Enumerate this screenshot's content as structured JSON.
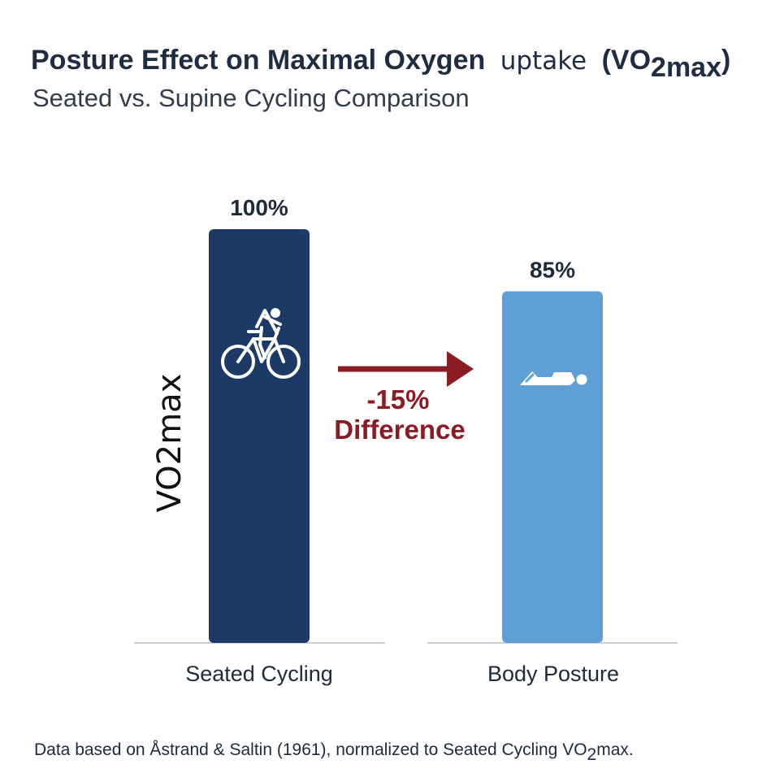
{
  "title": {
    "part1": "Posture Effect on Maximal Oxygen",
    "part2": "uptake",
    "part3_prefix": "(VO",
    "part3_sub": "2max",
    "part3_suffix": ")"
  },
  "subtitle": "Seated vs. Supine Cycling Comparison",
  "footnote": {
    "prefix": "Data based on Åstrand & Saltin (1961), normalized to Seated Cycling VO",
    "sub": "2",
    "suffix": "max."
  },
  "annotation": {
    "change": "-15%",
    "label": "Difference",
    "arrow_color": "#8b1c24"
  },
  "chart_data": {
    "type": "bar",
    "ylabel": "VO2max",
    "ylim": [
      0,
      100
    ],
    "grid": false,
    "categories": [
      "Seated Cycling",
      "Body Posture"
    ],
    "values": [
      100,
      85
    ],
    "value_labels": [
      "100%",
      "85%"
    ],
    "bar_colors": [
      "#1c3a66",
      "#5f9fd6"
    ],
    "bar_icons": [
      "cyclist-icon",
      "lying-person-icon"
    ]
  }
}
